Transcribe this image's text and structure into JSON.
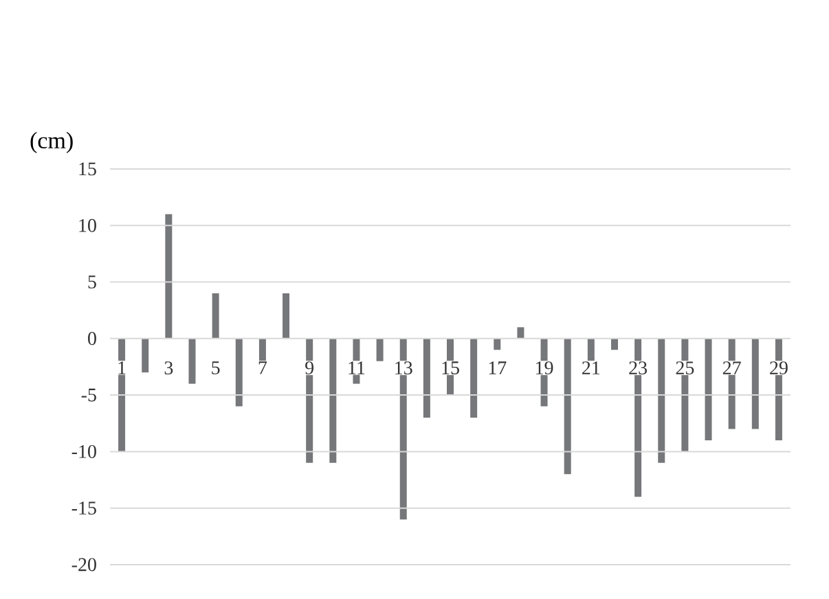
{
  "chart_data": {
    "type": "bar",
    "ylabel": "(cm)",
    "categories": [
      "1",
      null,
      "3",
      null,
      "5",
      null,
      "7",
      null,
      "9",
      null,
      "11",
      null,
      "13",
      null,
      "15",
      null,
      "17",
      null,
      "19",
      null,
      "21",
      null,
      "23",
      null,
      "25",
      null,
      "27",
      null,
      "29"
    ],
    "values": [
      -10,
      -3,
      11,
      -4,
      4,
      -6,
      -2,
      4,
      -11,
      -11,
      -4,
      -2,
      -16,
      -7,
      -5,
      -7,
      -1,
      1,
      -6,
      -12,
      -2,
      -1,
      -14,
      -11,
      -10,
      -9,
      -8,
      -8,
      -9
    ],
    "color": "#76777a",
    "ylim": [
      -20,
      15
    ],
    "yticks": [
      -20,
      -15,
      -10,
      -5,
      0,
      5,
      10,
      15
    ],
    "grid": "y"
  }
}
